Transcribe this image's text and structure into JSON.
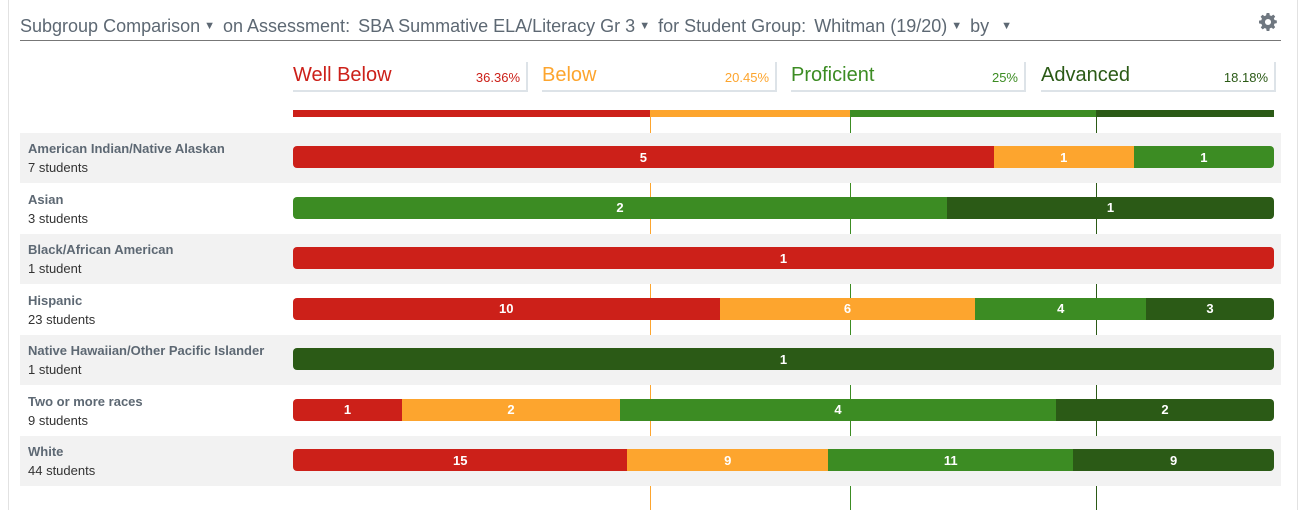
{
  "header": {
    "comparison_label": "Subgroup Comparison",
    "assessment_prefix": "on Assessment:",
    "assessment_value": "SBA Summative ELA/Literacy Gr 3",
    "group_prefix": "for Student Group:",
    "group_value": "Whitman (19/20)",
    "by_label": "by"
  },
  "colors": {
    "well_below": "#cc2019",
    "below": "#fda52e",
    "proficient": "#3c8c23",
    "advanced": "#2b5a16",
    "text": "#5d6873"
  },
  "chart_data": {
    "type": "bar",
    "stacked": "100%",
    "levels": [
      {
        "key": "well_below",
        "name": "Well Below",
        "percent": 36.36,
        "percent_label": "36.36%"
      },
      {
        "key": "below",
        "name": "Below",
        "percent": 20.45,
        "percent_label": "20.45%"
      },
      {
        "key": "proficient",
        "name": "Proficient",
        "percent": 25,
        "percent_label": "25%"
      },
      {
        "key": "advanced",
        "name": "Advanced",
        "percent": 18.18,
        "percent_label": "18.18%"
      }
    ],
    "rows": [
      {
        "name": "American Indian/Native Alaskan",
        "count_label": "7 students",
        "counts": [
          5,
          1,
          1,
          0
        ]
      },
      {
        "name": "Asian",
        "count_label": "3 students",
        "counts": [
          0,
          0,
          2,
          1
        ]
      },
      {
        "name": "Black/African American",
        "count_label": "1 student",
        "counts": [
          1,
          0,
          0,
          0
        ]
      },
      {
        "name": "Hispanic",
        "count_label": "23 students",
        "counts": [
          10,
          6,
          4,
          3
        ]
      },
      {
        "name": "Native Hawaiian/Other Pacific Islander",
        "count_label": "1 student",
        "counts": [
          0,
          0,
          0,
          1
        ]
      },
      {
        "name": "Two or more races",
        "count_label": "9 students",
        "counts": [
          1,
          2,
          4,
          2
        ]
      },
      {
        "name": "White",
        "count_label": "44 students",
        "counts": [
          15,
          9,
          11,
          9
        ]
      }
    ]
  }
}
